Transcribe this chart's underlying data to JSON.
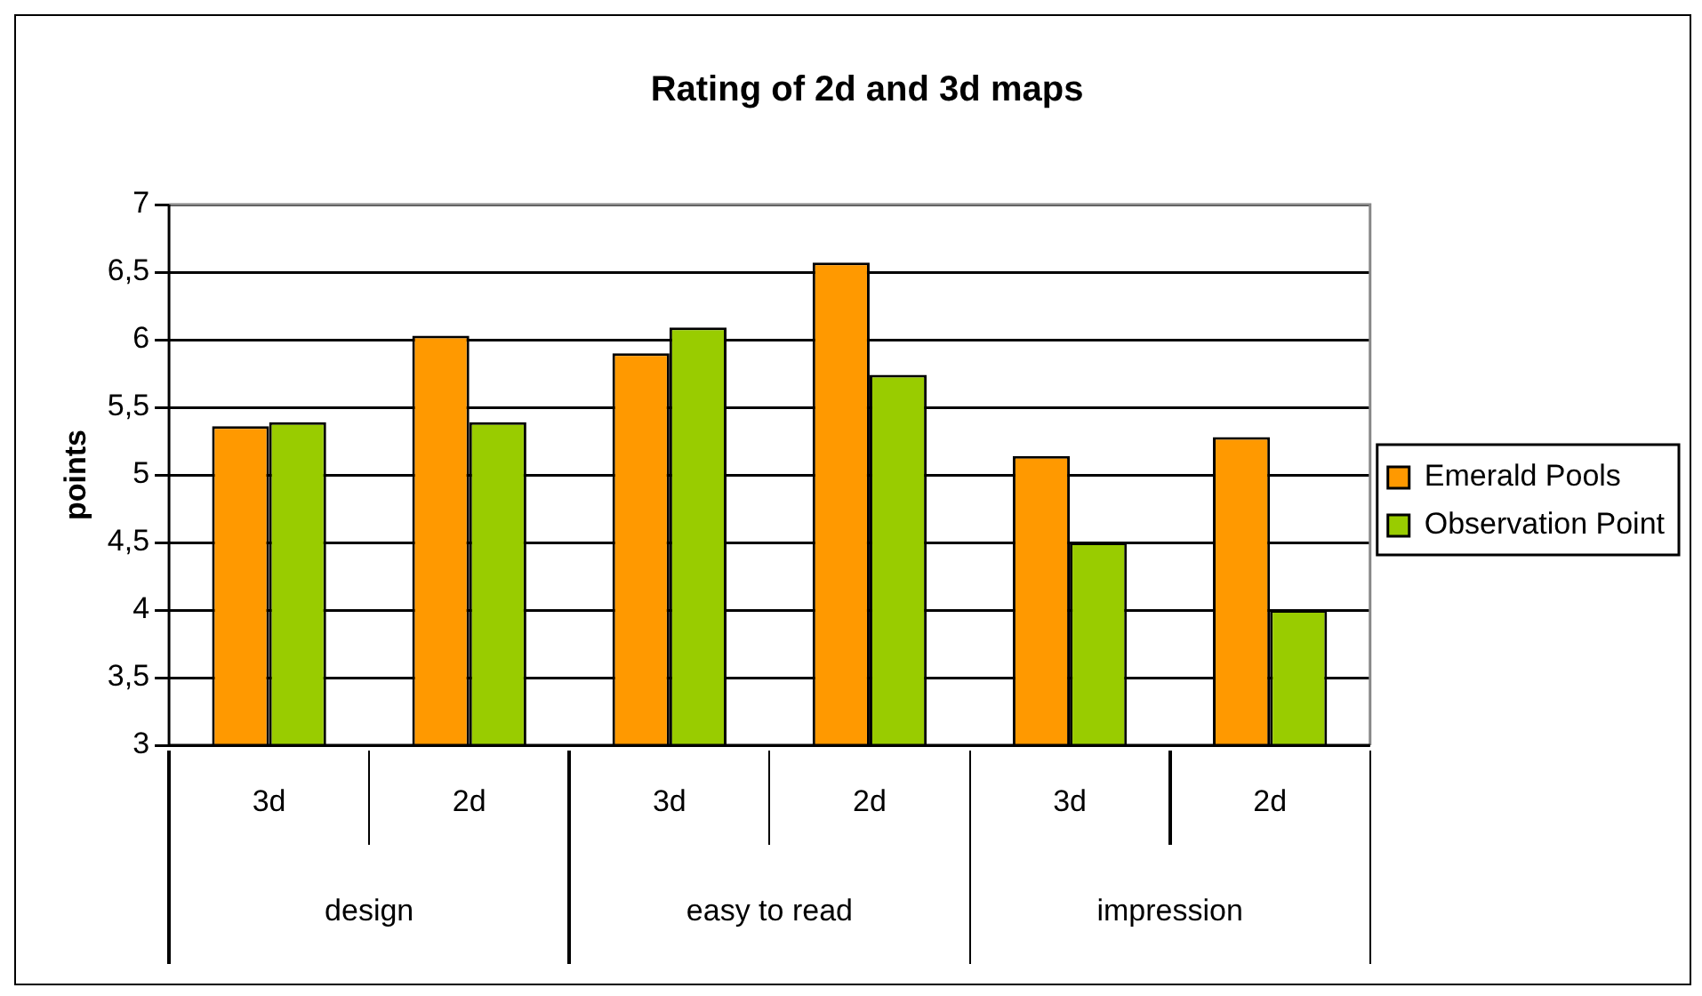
{
  "chart_data": {
    "type": "bar",
    "title": "Rating of 2d and 3d maps",
    "ylabel": "points",
    "categories": [
      "3d",
      "2d",
      "3d",
      "2d",
      "3d",
      "2d"
    ],
    "annotations": [
      "design",
      "easy to read",
      "impression"
    ],
    "series": [
      {
        "name": "Emerald Pools",
        "color": "#ff9900",
        "values": [
          5.36,
          6.03,
          5.9,
          6.57,
          5.14,
          5.28
        ]
      },
      {
        "name": "Observation Point",
        "color": "#99cc00",
        "values": [
          5.39,
          5.39,
          6.09,
          5.74,
          4.5,
          4.0
        ]
      }
    ],
    "ylim": [
      3,
      7
    ],
    "yticks": [
      3,
      {
        "value": 3.5,
        "label": "3,5"
      },
      4,
      {
        "value": 4.5,
        "label": "4,5"
      },
      5,
      {
        "value": 5.5,
        "label": "5,5"
      },
      6,
      {
        "value": 6.5,
        "label": "6,5"
      },
      7
    ],
    "grid": "y",
    "legend": "right"
  }
}
